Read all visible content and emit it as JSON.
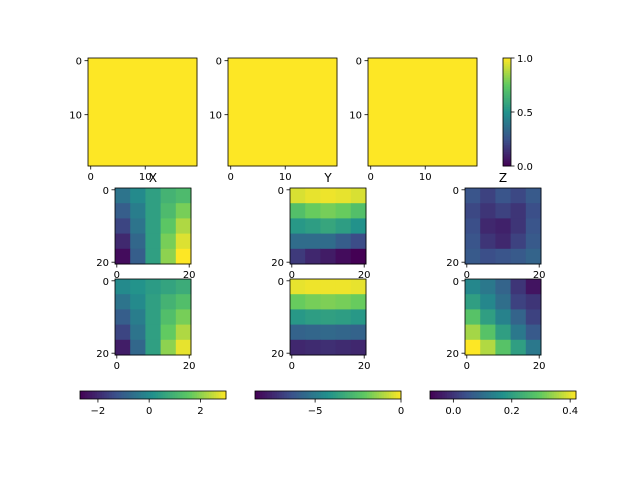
{
  "chart_data": [
    {
      "type": "heatmap",
      "z": [
        [
          1
        ]
      ],
      "clim": [
        0,
        1
      ],
      "xlim": [
        -0.5,
        19.5
      ],
      "ylim": [
        19.5,
        -0.5
      ],
      "xticks": [
        0,
        10
      ],
      "yticks": [
        0,
        10
      ]
    },
    {
      "type": "heatmap",
      "z": [
        [
          1
        ]
      ],
      "clim": [
        0,
        1
      ],
      "xlim": [
        -0.5,
        19.5
      ],
      "ylim": [
        19.5,
        -0.5
      ],
      "xticks": [
        0,
        10
      ],
      "yticks": [
        0,
        10
      ]
    },
    {
      "type": "heatmap",
      "z": [
        [
          1
        ]
      ],
      "clim": [
        0,
        1
      ],
      "xlim": [
        -0.5,
        19.5
      ],
      "ylim": [
        19.5,
        -0.5
      ],
      "xticks": [
        0,
        10
      ],
      "yticks": [
        0,
        10
      ]
    },
    {
      "type": "colorbar",
      "orientation": "vertical",
      "lim": [
        0,
        1
      ],
      "ticks": [
        {
          "value": 0,
          "label": "0.0"
        },
        {
          "value": 0.5,
          "label": "0.5"
        },
        {
          "value": 1,
          "label": "1.0"
        }
      ]
    },
    {
      "type": "heatmap",
      "title": "X",
      "z": [
        [
          -0.5,
          0,
          0.5,
          1,
          1.2
        ],
        [
          -1,
          -0.3,
          0.5,
          1.2,
          1.8
        ],
        [
          -1.5,
          -0.5,
          0.5,
          1.5,
          2.3
        ],
        [
          -2,
          -0.8,
          0.5,
          1.8,
          2.7
        ],
        [
          -2.5,
          -1,
          0.5,
          2,
          3
        ]
      ],
      "clim": [
        -2.7,
        3
      ],
      "xlim": [
        -0.5,
        20.5
      ],
      "ylim": [
        20.5,
        -0.5
      ],
      "xticks": [
        0,
        20
      ],
      "yticks": [
        0,
        20
      ]
    },
    {
      "type": "heatmap",
      "title": "Y",
      "z": [
        [
          -0.5,
          -0.3,
          -0.2,
          -0.3,
          -0.5
        ],
        [
          -2.5,
          -2,
          -1.8,
          -2,
          -2.5
        ],
        [
          -4,
          -3.8,
          -3.5,
          -3.8,
          -4.2
        ],
        [
          -5.5,
          -5.5,
          -5.5,
          -6,
          -6.5
        ],
        [
          -7,
          -7.5,
          -7.8,
          -8.2,
          -8.5
        ]
      ],
      "clim": [
        -8.5,
        0
      ],
      "xlim": [
        -0.5,
        20.5
      ],
      "ylim": [
        20.5,
        -0.5
      ],
      "xticks": [
        0,
        20
      ],
      "yticks": [
        0,
        20
      ]
    },
    {
      "type": "heatmap",
      "title": "Z",
      "z": [
        [
          0.05,
          0.02,
          0.05,
          0.03,
          0.06
        ],
        [
          0.03,
          0,
          0.02,
          0,
          0.04
        ],
        [
          0.04,
          -0.02,
          -0.03,
          0,
          0.05
        ],
        [
          0.05,
          0,
          -0.02,
          0.02,
          0.06
        ],
        [
          0.06,
          0.04,
          0.05,
          0.06,
          0.08
        ]
      ],
      "clim": [
        -0.08,
        0.42
      ],
      "xlim": [
        -0.5,
        20.5
      ],
      "ylim": [
        20.5,
        -0.5
      ],
      "xticks": [
        0,
        20
      ],
      "yticks": [
        0,
        20
      ]
    },
    {
      "type": "heatmap",
      "z": [
        [
          0,
          0.2,
          0.4,
          0.6,
          0.8
        ],
        [
          -0.5,
          0,
          0.5,
          1,
          1.3
        ],
        [
          -1,
          -0.3,
          0.5,
          1.3,
          1.8
        ],
        [
          -1.5,
          -0.5,
          0.5,
          1.6,
          2.3
        ],
        [
          -2.2,
          -0.8,
          0.5,
          2,
          2.8
        ]
      ],
      "clim": [
        -2.7,
        3
      ],
      "xlim": [
        -0.5,
        20.5
      ],
      "ylim": [
        20.5,
        -0.5
      ],
      "xticks": [
        0,
        20
      ],
      "yticks": [
        0,
        20
      ]
    },
    {
      "type": "heatmap",
      "z": [
        [
          -0.3,
          -0.2,
          -0.2,
          -0.2,
          -0.3
        ],
        [
          -2,
          -1.8,
          -1.7,
          -1.8,
          -2
        ],
        [
          -4,
          -3.8,
          -3.7,
          -3.8,
          -4
        ],
        [
          -5.8,
          -5.7,
          -5.6,
          -5.7,
          -5.8
        ],
        [
          -7.5,
          -7.4,
          -7.3,
          -7.4,
          -7.5
        ]
      ],
      "clim": [
        -8.5,
        0
      ],
      "xlim": [
        -0.5,
        20.5
      ],
      "ylim": [
        20.5,
        -0.5
      ],
      "xticks": [
        0,
        20
      ],
      "yticks": [
        0,
        20
      ]
    },
    {
      "type": "heatmap",
      "z": [
        [
          0.15,
          0.12,
          0.08,
          0,
          -0.05
        ],
        [
          0.2,
          0.15,
          0.1,
          0.02,
          0
        ],
        [
          0.28,
          0.2,
          0.14,
          0.08,
          0.02
        ],
        [
          0.35,
          0.28,
          0.2,
          0.12,
          0.06
        ],
        [
          0.42,
          0.36,
          0.28,
          0.2,
          0.12
        ]
      ],
      "clim": [
        -0.08,
        0.42
      ],
      "xlim": [
        -0.5,
        20.5
      ],
      "ylim": [
        20.5,
        -0.5
      ],
      "xticks": [
        0,
        20
      ],
      "yticks": [
        0,
        20
      ]
    },
    {
      "type": "colorbar",
      "orientation": "horizontal",
      "lim": [
        -2.7,
        3
      ],
      "ticks": [
        {
          "value": -2,
          "label": "−2"
        },
        0,
        2
      ]
    },
    {
      "type": "colorbar",
      "orientation": "horizontal",
      "lim": [
        -8.5,
        0
      ],
      "ticks": [
        {
          "value": -5,
          "label": "−5"
        },
        0
      ]
    },
    {
      "type": "colorbar",
      "orientation": "horizontal",
      "lim": [
        -0.08,
        0.42
      ],
      "ticks": [
        {
          "value": 0,
          "label": "0.0"
        },
        {
          "value": 0.2,
          "label": "0.2"
        },
        {
          "value": 0.4,
          "label": "0.4"
        }
      ]
    }
  ]
}
